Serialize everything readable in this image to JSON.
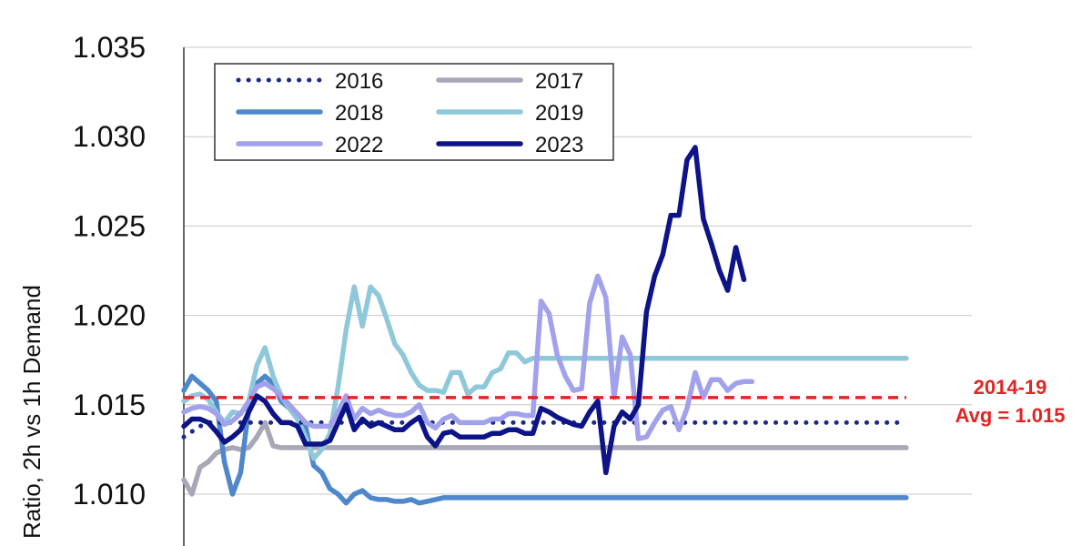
{
  "chart_data": {
    "type": "line",
    "title": "",
    "xlabel": "",
    "ylabel": "Ratio, 2h vs 1h Demand",
    "ylim": [
      1.0075,
      1.035
    ],
    "yticks": [
      "1.010",
      "1.015",
      "1.020",
      "1.025",
      "1.030",
      "1.035"
    ],
    "grid": "horizontal",
    "legend_position": "top-left",
    "colors": {
      "2016": "#1a2a8c",
      "2017": "#a7a7b7",
      "2018": "#4f87cc",
      "2019": "#8fc9d9",
      "2022": "#a1a1ec",
      "2023": "#0d1487",
      "reference": "#e32424"
    },
    "series": [
      {
        "name": "2016",
        "style": "dotted",
        "start": 0,
        "values": [
          1.0132,
          1.0135,
          1.0138,
          1.014,
          1.014,
          1.014,
          1.014,
          1.014,
          1.014,
          1.014,
          1.014,
          1.014,
          1.014,
          1.014,
          1.014,
          1.014,
          1.014,
          1.014,
          1.014,
          1.014,
          1.014,
          1.014,
          1.014,
          1.014,
          1.014,
          1.014,
          1.014,
          1.014,
          1.014,
          1.014,
          1.014,
          1.014,
          1.014,
          1.014,
          1.014,
          1.014,
          1.014,
          1.014,
          1.014,
          1.014,
          1.014,
          1.014,
          1.014,
          1.014,
          1.014,
          1.014,
          1.014,
          1.014,
          1.014,
          1.014,
          1.014,
          1.014,
          1.014,
          1.014,
          1.014,
          1.014,
          1.014,
          1.014,
          1.014,
          1.014,
          1.014,
          1.014,
          1.014,
          1.014,
          1.014,
          1.014,
          1.014,
          1.014,
          1.014,
          1.014,
          1.014,
          1.014,
          1.014,
          1.014,
          1.014,
          1.014,
          1.014,
          1.014,
          1.014,
          1.014,
          1.014,
          1.014,
          1.014,
          1.014,
          1.014,
          1.014,
          1.014,
          1.014,
          1.014,
          1.014
        ]
      },
      {
        "name": "2017",
        "style": "solid",
        "start": 0,
        "values": [
          1.0108,
          1.01,
          1.0115,
          1.0118,
          1.0123,
          1.0125,
          1.0126,
          1.0125,
          1.0126,
          1.0132,
          1.014,
          1.0127,
          1.0126,
          1.0126,
          1.0126,
          1.0126,
          1.0126,
          1.0126,
          1.0126,
          1.0126,
          1.0126,
          1.0126,
          1.0126,
          1.0126,
          1.0126,
          1.0126,
          1.0126,
          1.0126,
          1.0126,
          1.0126,
          1.0126,
          1.0126,
          1.0126,
          1.0126,
          1.0126,
          1.0126,
          1.0126,
          1.0126,
          1.0126,
          1.0126,
          1.0126,
          1.0126,
          1.0126,
          1.0126,
          1.0126,
          1.0126,
          1.0126,
          1.0126,
          1.0126,
          1.0126,
          1.0126,
          1.0126,
          1.0126,
          1.0126,
          1.0126,
          1.0126,
          1.0126,
          1.0126,
          1.0126,
          1.0126,
          1.0126,
          1.0126,
          1.0126,
          1.0126,
          1.0126,
          1.0126,
          1.0126,
          1.0126,
          1.0126,
          1.0126,
          1.0126,
          1.0126,
          1.0126,
          1.0126,
          1.0126,
          1.0126,
          1.0126,
          1.0126,
          1.0126,
          1.0126,
          1.0126,
          1.0126,
          1.0126,
          1.0126,
          1.0126,
          1.0126,
          1.0126,
          1.0126,
          1.0126,
          1.0126
        ]
      },
      {
        "name": "2018",
        "style": "solid",
        "start": 0,
        "values": [
          1.0158,
          1.0166,
          1.0162,
          1.0158,
          1.0152,
          1.0118,
          1.01,
          1.0112,
          1.0148,
          1.0162,
          1.0166,
          1.0162,
          1.0152,
          1.0148,
          1.0142,
          1.0138,
          1.0116,
          1.0112,
          1.0103,
          1.01,
          1.0095,
          1.01,
          1.0102,
          1.0098,
          1.0097,
          1.0097,
          1.0096,
          1.0096,
          1.0097,
          1.0095,
          1.0096,
          1.0097,
          1.0098,
          1.0098,
          1.0098,
          1.0098,
          1.0098,
          1.0098,
          1.0098,
          1.0098,
          1.0098,
          1.0098,
          1.0098,
          1.0098,
          1.0098,
          1.0098,
          1.0098,
          1.0098,
          1.0098,
          1.0098,
          1.0098,
          1.0098,
          1.0098,
          1.0098,
          1.0098,
          1.0098,
          1.0098,
          1.0098,
          1.0098,
          1.0098,
          1.0098,
          1.0098,
          1.0098,
          1.0098,
          1.0098,
          1.0098,
          1.0098,
          1.0098,
          1.0098,
          1.0098,
          1.0098,
          1.0098,
          1.0098,
          1.0098,
          1.0098,
          1.0098,
          1.0098,
          1.0098,
          1.0098,
          1.0098,
          1.0098,
          1.0098,
          1.0098,
          1.0098,
          1.0098,
          1.0098,
          1.0098,
          1.0098,
          1.0098,
          1.0098
        ]
      },
      {
        "name": "2019",
        "style": "solid",
        "start": 0,
        "values": [
          1.0152,
          1.0155,
          1.0156,
          1.0153,
          1.0146,
          1.014,
          1.0146,
          1.0145,
          1.0152,
          1.0172,
          1.0182,
          1.0166,
          1.0155,
          1.0148,
          1.0142,
          1.0132,
          1.012,
          1.0125,
          1.0134,
          1.016,
          1.0192,
          1.0216,
          1.0194,
          1.0216,
          1.0211,
          1.0198,
          1.0184,
          1.0178,
          1.0168,
          1.0161,
          1.0158,
          1.0158,
          1.0157,
          1.0168,
          1.0168,
          1.0156,
          1.016,
          1.016,
          1.0168,
          1.017,
          1.0179,
          1.0179,
          1.0174,
          1.0176,
          1.0176,
          1.0176,
          1.0176,
          1.0176,
          1.0176,
          1.0176,
          1.0176,
          1.0176,
          1.0176,
          1.0176,
          1.0176,
          1.0176,
          1.0176,
          1.0176,
          1.0176,
          1.0176,
          1.0176,
          1.0176,
          1.0176,
          1.0176,
          1.0176,
          1.0176,
          1.0176,
          1.0176,
          1.0176,
          1.0176,
          1.0176,
          1.0176,
          1.0176,
          1.0176,
          1.0176,
          1.0176,
          1.0176,
          1.0176,
          1.0176,
          1.0176,
          1.0176,
          1.0176,
          1.0176,
          1.0176,
          1.0176,
          1.0176,
          1.0176,
          1.0176,
          1.0176,
          1.0176
        ]
      },
      {
        "name": "2022",
        "style": "solid",
        "start": 0,
        "values": [
          1.0146,
          1.0148,
          1.0149,
          1.0148,
          1.0145,
          1.0139,
          1.0141,
          1.0145,
          1.0152,
          1.016,
          1.0162,
          1.0159,
          1.0155,
          1.015,
          1.0145,
          1.014,
          1.0138,
          1.0138,
          1.0138,
          1.0146,
          1.0155,
          1.0142,
          1.0148,
          1.0145,
          1.0147,
          1.0145,
          1.0144,
          1.0144,
          1.0146,
          1.015,
          1.014,
          1.0137,
          1.0142,
          1.0144,
          1.014,
          1.014,
          1.014,
          1.014,
          1.0142,
          1.0142,
          1.0145,
          1.0145,
          1.0144,
          1.0144,
          1.0208,
          1.0201,
          1.0178,
          1.0166,
          1.0158,
          1.0159,
          1.0207,
          1.0222,
          1.021,
          1.0154,
          1.0188,
          1.0178,
          1.0131,
          1.0132,
          1.014,
          1.0147,
          1.0149,
          1.0136,
          1.0148,
          1.0168,
          1.0154,
          1.0164,
          1.0164,
          1.0158,
          1.0162,
          1.0163,
          1.0163
        ]
      },
      {
        "name": "2023",
        "style": "solid",
        "start": 0,
        "values": [
          1.0138,
          1.0142,
          1.0142,
          1.014,
          1.0135,
          1.0129,
          1.0132,
          1.0136,
          1.0146,
          1.0155,
          1.0152,
          1.0145,
          1.014,
          1.014,
          1.0138,
          1.0128,
          1.0128,
          1.0128,
          1.013,
          1.014,
          1.015,
          1.0136,
          1.0142,
          1.0138,
          1.014,
          1.0138,
          1.0136,
          1.0136,
          1.014,
          1.0143,
          1.0132,
          1.0127,
          1.0134,
          1.0135,
          1.0132,
          1.0132,
          1.0132,
          1.0132,
          1.0134,
          1.0134,
          1.0136,
          1.0136,
          1.0134,
          1.0134,
          1.0148,
          1.0146,
          1.0143,
          1.0141,
          1.0139,
          1.0138,
          1.0146,
          1.0152,
          1.0112,
          1.0138,
          1.0146,
          1.0142,
          1.015,
          1.0202,
          1.0222,
          1.0234,
          1.0256,
          1.0256,
          1.0287,
          1.0294,
          1.0254,
          1.024,
          1.0225,
          1.0214,
          1.0238,
          1.022
        ]
      },
      {
        "name": "2014-19 Avg = 1.015",
        "style": "dashed",
        "start": 0,
        "values": [
          1.0154,
          1.0154,
          1.0154,
          1.0154,
          1.0154,
          1.0154,
          1.0154,
          1.0154,
          1.0154,
          1.0154,
          1.0154,
          1.0154,
          1.0154,
          1.0154,
          1.0154,
          1.0154,
          1.0154,
          1.0154,
          1.0154,
          1.0154,
          1.0154,
          1.0154,
          1.0154,
          1.0154,
          1.0154,
          1.0154,
          1.0154,
          1.0154,
          1.0154,
          1.0154,
          1.0154,
          1.0154,
          1.0154,
          1.0154,
          1.0154,
          1.0154,
          1.0154,
          1.0154,
          1.0154,
          1.0154,
          1.0154,
          1.0154,
          1.0154,
          1.0154,
          1.0154,
          1.0154,
          1.0154,
          1.0154,
          1.0154,
          1.0154,
          1.0154,
          1.0154,
          1.0154,
          1.0154,
          1.0154,
          1.0154,
          1.0154,
          1.0154,
          1.0154,
          1.0154,
          1.0154,
          1.0154,
          1.0154,
          1.0154,
          1.0154,
          1.0154,
          1.0154,
          1.0154,
          1.0154,
          1.0154,
          1.0154,
          1.0154,
          1.0154,
          1.0154,
          1.0154,
          1.0154,
          1.0154,
          1.0154,
          1.0154,
          1.0154,
          1.0154,
          1.0154,
          1.0154,
          1.0154,
          1.0154,
          1.0154,
          1.0154,
          1.0154,
          1.0154,
          1.0154
        ]
      }
    ],
    "legend": [
      {
        "label": "2016",
        "series": "2016"
      },
      {
        "label": "2017",
        "series": "2017"
      },
      {
        "label": "2018",
        "series": "2018"
      },
      {
        "label": "2019",
        "series": "2019"
      },
      {
        "label": "2022",
        "series": "2022"
      },
      {
        "label": "2023",
        "series": "2023"
      }
    ],
    "annotation": {
      "line1": "2014-19",
      "line2": "Avg = 1.015"
    }
  }
}
